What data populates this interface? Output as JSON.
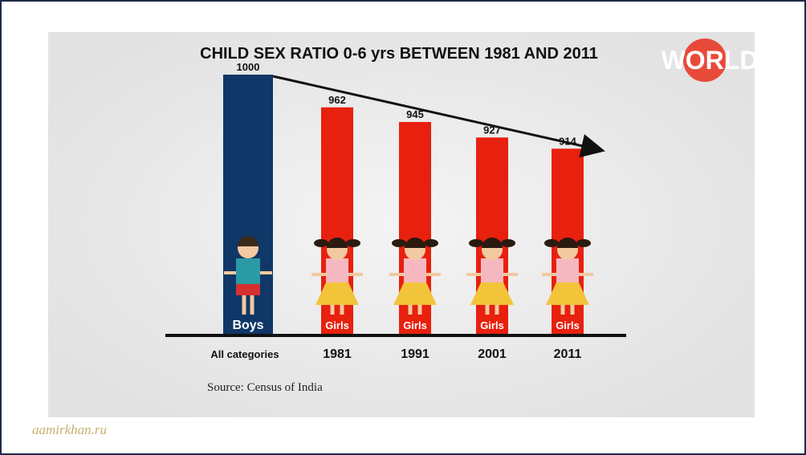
{
  "chart_data": {
    "type": "bar",
    "title": "CHILD SEX RATIO 0-6 yrs BETWEEN 1981 AND 2011",
    "categories": [
      "All categories",
      "1981",
      "1991",
      "2001",
      "2011"
    ],
    "values": [
      1000,
      962,
      945,
      927,
      914
    ],
    "bar_labels": [
      "Boys",
      "Girls",
      "Girls",
      "Girls",
      "Girls"
    ],
    "colors": [
      "#0f3767",
      "#e8200e",
      "#e8200e",
      "#e8200e",
      "#e8200e"
    ],
    "source": "Source: Census of India"
  },
  "logo": "WORLD",
  "watermark": "aamirkhan.ru"
}
